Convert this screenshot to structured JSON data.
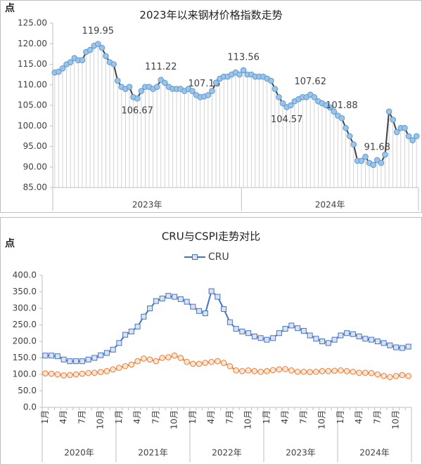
{
  "charts": [
    {
      "type": "line",
      "title": "2023年以来钢材价格指数走势",
      "y_label": "点",
      "ylim": [
        85,
        125
      ],
      "yticks": [
        {
          "value": 85,
          "label": "85.00"
        },
        {
          "value": 90,
          "label": "90.00"
        },
        {
          "value": 95,
          "label": "95.00"
        },
        {
          "value": 100,
          "label": "100.00"
        },
        {
          "value": 105,
          "label": "105.00"
        },
        {
          "value": 110,
          "label": "110.00"
        },
        {
          "value": 115,
          "label": "115.00"
        },
        {
          "value": 120,
          "label": "120.00"
        },
        {
          "value": 125,
          "label": "125.00"
        }
      ],
      "groups": [
        {
          "label": "2023年",
          "count": 48
        },
        {
          "label": "2024年",
          "count": 45
        }
      ],
      "grid": false,
      "drop_lines": true,
      "series": [
        {
          "color": "#404040",
          "marker": "circle",
          "marker_color": "#9dc3e6",
          "values": [
            113,
            113.2,
            114,
            115,
            115.5,
            116.5,
            116,
            116,
            118,
            118.5,
            119.5,
            119.95,
            119,
            117,
            115.5,
            115,
            111,
            109.5,
            109,
            109.5,
            107,
            106.67,
            108.5,
            109.5,
            109.5,
            109,
            109.5,
            111.22,
            110.5,
            109.5,
            109,
            109,
            109,
            108.5,
            109,
            108.5,
            107.5,
            107,
            107.16,
            107.5,
            108.5,
            110.5,
            111.5,
            112,
            112,
            112.5,
            113,
            112.5,
            113.56,
            112.5,
            112.5,
            112,
            112,
            112,
            111.5,
            111,
            109,
            107,
            105.5,
            104.57,
            105,
            106,
            106.5,
            107,
            107,
            107.62,
            107,
            106,
            105.5,
            105,
            104.5,
            103.5,
            102.5,
            101.88,
            99.5,
            97.5,
            95.5,
            91.5,
            91.5,
            92.5,
            91,
            90.5,
            91.68,
            91,
            93,
            103.5,
            101.5,
            98.5,
            99.5,
            99.5,
            97.5,
            96.5,
            97.5
          ],
          "value_labels": [
            null,
            null,
            null,
            null,
            null,
            null,
            null,
            null,
            null,
            null,
            null,
            "119.95",
            null,
            null,
            null,
            null,
            null,
            null,
            null,
            null,
            null,
            "106.67",
            null,
            null,
            null,
            null,
            null,
            "111.22",
            null,
            null,
            null,
            null,
            null,
            null,
            null,
            null,
            null,
            null,
            "107.16",
            null,
            null,
            null,
            null,
            null,
            null,
            null,
            null,
            null,
            "113.56",
            null,
            null,
            null,
            null,
            null,
            null,
            null,
            null,
            null,
            null,
            "104.57",
            null,
            null,
            null,
            null,
            null,
            "107.62",
            null,
            null,
            null,
            null,
            null,
            null,
            null,
            "101.88",
            null,
            null,
            null,
            null,
            null,
            null,
            null,
            null,
            "91.68",
            null,
            null,
            null,
            null,
            null,
            null,
            null,
            null,
            null,
            null
          ]
        }
      ]
    },
    {
      "type": "line",
      "title": "CRU与CSPI走势对比",
      "y_label": "点",
      "ylim": [
        0,
        400
      ],
      "yticks": [
        {
          "value": 0,
          "label": "0.0"
        },
        {
          "value": 50,
          "label": "50.0"
        },
        {
          "value": 100,
          "label": "100.0"
        },
        {
          "value": 150,
          "label": "150.0"
        },
        {
          "value": 200,
          "label": "200.0"
        },
        {
          "value": 250,
          "label": "250.0"
        },
        {
          "value": 300,
          "label": "300.0"
        },
        {
          "value": 350,
          "label": "350.0"
        },
        {
          "value": 400,
          "label": "400.0"
        }
      ],
      "categories": [
        "1月",
        null,
        null,
        "4月",
        null,
        null,
        "7月",
        null,
        null,
        "10月",
        null,
        null,
        "1月",
        null,
        null,
        "4月",
        null,
        null,
        "7月",
        null,
        null,
        "10月",
        null,
        null,
        "1月",
        null,
        null,
        "4月",
        null,
        null,
        "7月",
        null,
        null,
        "10月",
        null,
        null,
        "1月",
        null,
        null,
        "4月",
        null,
        null,
        "7月",
        null,
        null,
        "10月",
        null,
        null,
        "1月",
        null,
        null,
        "4月",
        null,
        null,
        "7月",
        null,
        null,
        "10月",
        null,
        null
      ],
      "groups": [
        {
          "label": "2020年",
          "count": 12
        },
        {
          "label": "2021年",
          "count": 12
        },
        {
          "label": "2022年",
          "count": 12
        },
        {
          "label": "2023年",
          "count": 12
        },
        {
          "label": "2024年",
          "count": 12
        }
      ],
      "grid": false,
      "legend": "top",
      "series": [
        {
          "name": "CRU",
          "color": "#4472c4",
          "marker": "square",
          "marker_color": "#dae3f3",
          "values": [
            157,
            157,
            155,
            145,
            140,
            140,
            140,
            145,
            150,
            158,
            165,
            175,
            195,
            220,
            230,
            245,
            275,
            300,
            322,
            330,
            338,
            335,
            328,
            320,
            305,
            292,
            285,
            352,
            335,
            298,
            258,
            238,
            230,
            225,
            215,
            210,
            205,
            210,
            225,
            238,
            248,
            240,
            232,
            218,
            208,
            200,
            195,
            205,
            218,
            225,
            222,
            215,
            208,
            205,
            200,
            195,
            188,
            182,
            180,
            184
          ]
        },
        {
          "color": "#ed7d31",
          "marker": "circle",
          "marker_color": "#fbe5d6",
          "values": [
            103,
            102,
            100,
            97,
            98,
            100,
            102,
            104,
            105,
            107,
            110,
            115,
            120,
            125,
            130,
            140,
            148,
            145,
            140,
            150,
            152,
            157,
            150,
            138,
            132,
            132,
            135,
            138,
            140,
            135,
            125,
            112,
            110,
            112,
            110,
            108,
            110,
            113,
            115,
            116,
            112,
            108,
            108,
            107,
            108,
            110,
            110,
            111,
            112,
            110,
            108,
            105,
            105,
            104,
            100,
            95,
            92,
            95,
            98,
            95
          ]
        }
      ]
    }
  ]
}
